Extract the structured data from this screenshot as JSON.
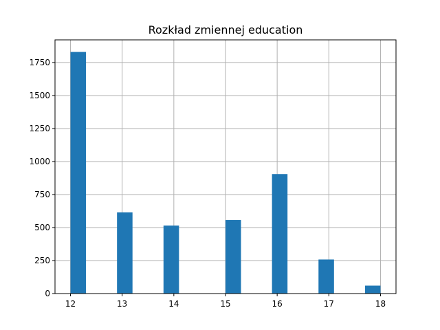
{
  "chart_data": {
    "type": "bar",
    "title": "Rozkład zmiennej education",
    "xlabel": "",
    "ylabel": "",
    "grid": true,
    "color": "#1f77b4",
    "bins": [
      {
        "x0": 12.0,
        "x1": 12.3,
        "count": 1830
      },
      {
        "x0": 12.9,
        "x1": 13.2,
        "count": 615
      },
      {
        "x0": 13.8,
        "x1": 14.1,
        "count": 515
      },
      {
        "x0": 15.0,
        "x1": 15.3,
        "count": 557
      },
      {
        "x0": 15.9,
        "x1": 16.2,
        "count": 905
      },
      {
        "x0": 16.8,
        "x1": 17.1,
        "count": 258
      },
      {
        "x0": 17.7,
        "x1": 18.0,
        "count": 60
      }
    ],
    "xlim": [
      11.7,
      18.3
    ],
    "ylim": [
      0,
      1921.5
    ],
    "xticks": [
      "12",
      "13",
      "14",
      "15",
      "16",
      "17",
      "18"
    ],
    "yticks": [
      "0",
      "250",
      "500",
      "750",
      "1000",
      "1250",
      "1500",
      "1750"
    ]
  }
}
